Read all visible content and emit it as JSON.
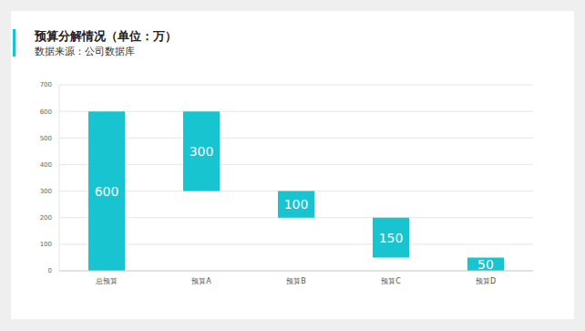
{
  "chart_data": {
    "type": "waterfall",
    "title": "预算分解情况（单位：万）",
    "subtitle": "数据来源：公司数据库",
    "categories": [
      "总预算",
      "预算A",
      "预算B",
      "预算C",
      "预算D"
    ],
    "values": [
      600,
      300,
      100,
      150,
      50
    ],
    "color": "#17c4d0",
    "ylim": [
      0,
      700
    ],
    "yticks": [
      0,
      100,
      200,
      300,
      400,
      500,
      600,
      700
    ],
    "grid": true,
    "data_labels": true
  }
}
